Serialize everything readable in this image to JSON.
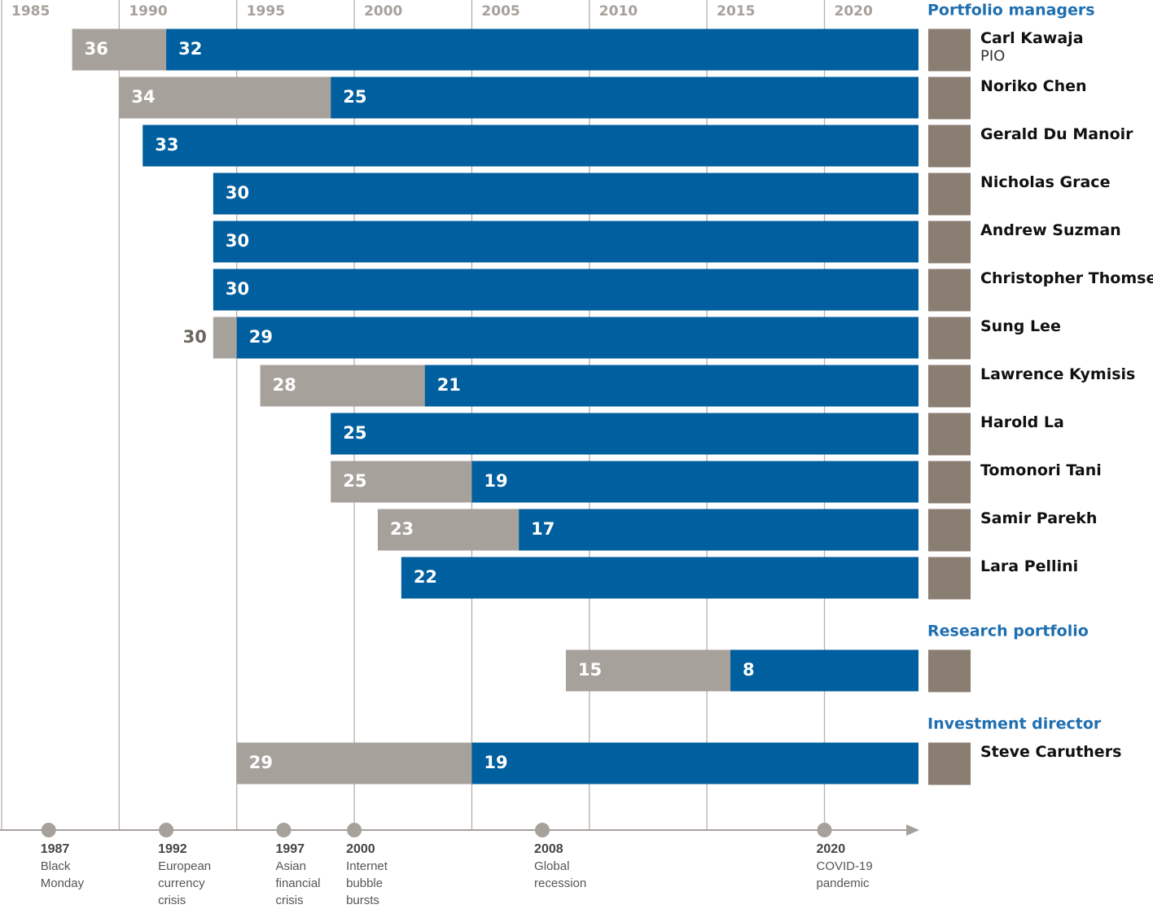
{
  "chart_data": {
    "type": "timeline",
    "xlim": [
      1985,
      2024
    ],
    "xticks": [
      1985,
      1990,
      1995,
      2000,
      2005,
      2010,
      2015,
      2020
    ],
    "grid": true,
    "experience_color": "#a7a19c",
    "firm_color": "#005f9e",
    "groups": [
      {
        "title": "Portfolio managers",
        "rows": [
          {
            "name": "Carl Kawaja",
            "role": "PIO",
            "experience": 36,
            "firm": 32
          },
          {
            "name": "Noriko Chen",
            "experience": 34,
            "firm": 25
          },
          {
            "name": "Gerald Du Manoir",
            "experience": null,
            "firm": 33
          },
          {
            "name": "Nicholas Grace",
            "experience": null,
            "firm": 30
          },
          {
            "name": "Andrew Suzman",
            "experience": null,
            "firm": 30
          },
          {
            "name": "Christopher Thomsen",
            "experience": null,
            "firm": 30
          },
          {
            "name": "Sung Lee",
            "experience": 30,
            "firm": 29
          },
          {
            "name": "Lawrence Kymisis",
            "experience": 28,
            "firm": 21
          },
          {
            "name": "Harold La",
            "experience": null,
            "firm": 25
          },
          {
            "name": "Tomonori Tani",
            "experience": 25,
            "firm": 19
          },
          {
            "name": "Samir Parekh",
            "experience": 23,
            "firm": 17
          },
          {
            "name": "Lara Pellini",
            "experience": null,
            "firm": 22
          }
        ]
      },
      {
        "title": "Research portfolio",
        "rows": [
          {
            "experience": 15,
            "firm": 8
          }
        ]
      },
      {
        "title": "Investment director",
        "rows": [
          {
            "name": "Steve Caruthers",
            "experience": 29,
            "firm": 19
          }
        ]
      }
    ],
    "events": [
      {
        "year": 1987,
        "label": "Black Monday"
      },
      {
        "year": 1992,
        "label": "European currency crisis"
      },
      {
        "year": 1997,
        "label": "Asian financial crisis"
      },
      {
        "year": 2000,
        "label": "Internet bubble bursts"
      },
      {
        "year": 2008,
        "label": "Global recession"
      },
      {
        "year": 2020,
        "label": "COVID-19 pandemic"
      }
    ]
  }
}
